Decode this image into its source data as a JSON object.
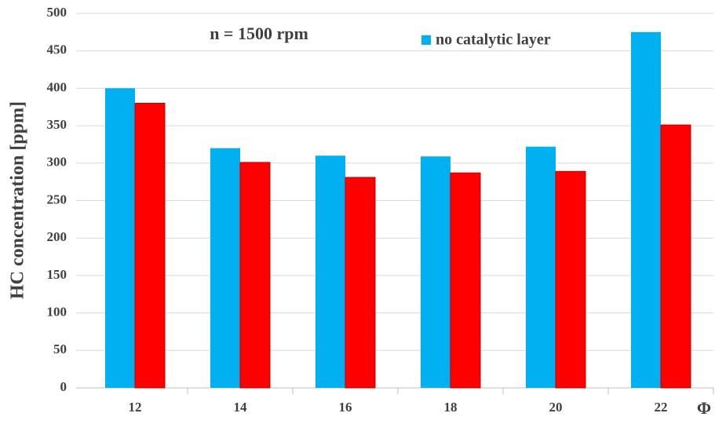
{
  "chart_data": {
    "type": "bar",
    "annotation": "n = 1500 rpm",
    "x_label": "Φ",
    "y_label": "HC concentration [ppm]",
    "categories": [
      "12",
      "14",
      "16",
      "18",
      "20",
      "22"
    ],
    "series": [
      {
        "name": "no catalytic layer",
        "color": "#00b0f0",
        "values": [
          400,
          320,
          310,
          309,
          322,
          475
        ]
      },
      {
        "color": "#ff0000",
        "values": [
          380,
          301,
          281,
          287,
          289,
          351
        ]
      }
    ],
    "ylim": [
      0,
      500
    ],
    "yticks": [
      0,
      50,
      100,
      150,
      200,
      250,
      300,
      350,
      400,
      450,
      500
    ],
    "grid": true
  }
}
